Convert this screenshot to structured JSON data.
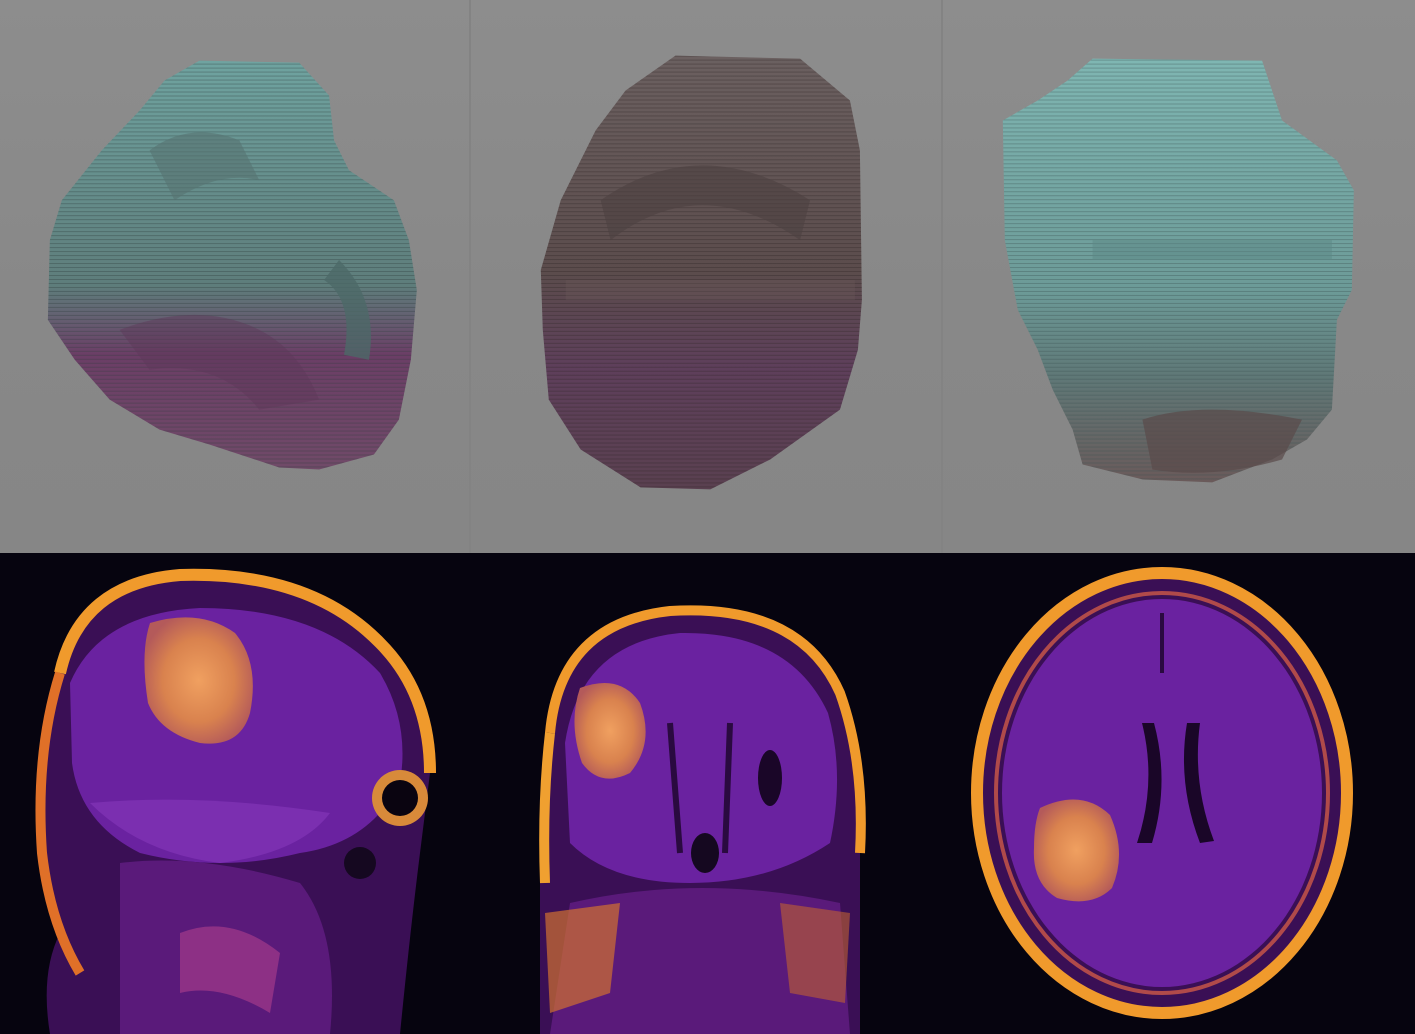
{
  "figure": {
    "rows": [
      {
        "kind": "3d-tumor-render",
        "panels": [
          {
            "view": "sagittal",
            "colors": {
              "top": "#6fa3a0",
              "mid": "#5e7d7b",
              "bottom": "#6b3e66"
            }
          },
          {
            "view": "coronal",
            "colors": {
              "top": "#6b5e5e",
              "mid": "#5b4c4c",
              "bottom": "#5e3f5b"
            }
          },
          {
            "view": "axial",
            "colors": {
              "top": "#7fb6b2",
              "mid": "#6c9a97",
              "bottom": "#6a5a5a"
            }
          }
        ]
      },
      {
        "kind": "mri-slice",
        "colormap": [
          "#000004",
          "#420a68",
          "#932667",
          "#dd513a",
          "#fca50a",
          "#fcffa4"
        ],
        "panels": [
          {
            "view": "sagittal"
          },
          {
            "view": "coronal"
          },
          {
            "view": "axial"
          }
        ]
      }
    ]
  }
}
